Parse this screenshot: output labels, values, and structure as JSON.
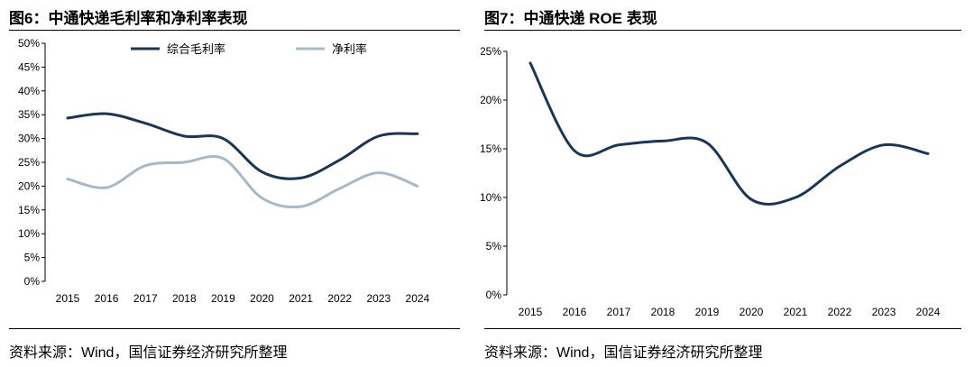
{
  "left": {
    "title": "图6：中通快递毛利率和净利率表现",
    "source": "资料来源：Wind，国信证券经济研究所整理",
    "chart_data": {
      "type": "line",
      "title": "图6：中通快递毛利率和净利率表现",
      "x": [
        "2015",
        "2016",
        "2017",
        "2018",
        "2019",
        "2020",
        "2021",
        "2022",
        "2023",
        "2024"
      ],
      "y_ticks": [
        "0%",
        "5%",
        "10%",
        "15%",
        "20%",
        "25%",
        "30%",
        "35%",
        "40%",
        "45%",
        "50%"
      ],
      "ylim": [
        0,
        50
      ],
      "legend_position": "top",
      "series": [
        {
          "name": "综合毛利率",
          "color": "#1a3556",
          "values": [
            34.3,
            35.2,
            33.2,
            30.5,
            30.0,
            23.0,
            21.7,
            25.5,
            30.5,
            31.0
          ]
        },
        {
          "name": "净利率",
          "color": "#a8b8c8",
          "values": [
            21.5,
            19.7,
            24.3,
            25.0,
            25.8,
            17.5,
            15.7,
            19.5,
            22.8,
            20.0
          ]
        }
      ]
    }
  },
  "right": {
    "title": "图7：中通快递 ROE 表现",
    "source": "资料来源：Wind，国信证券经济研究所整理",
    "chart_data": {
      "type": "line",
      "title": "图7：中通快递 ROE 表现",
      "x": [
        "2015",
        "2016",
        "2017",
        "2018",
        "2019",
        "2020",
        "2021",
        "2022",
        "2023",
        "2024"
      ],
      "y_ticks": [
        "0%",
        "5%",
        "10%",
        "15%",
        "20%",
        "25%"
      ],
      "ylim": [
        0,
        25
      ],
      "series": [
        {
          "name": "ROE",
          "color": "#1a3556",
          "values": [
            23.8,
            14.8,
            15.4,
            15.8,
            15.6,
            9.8,
            10.0,
            13.2,
            15.4,
            14.5
          ]
        }
      ]
    }
  }
}
